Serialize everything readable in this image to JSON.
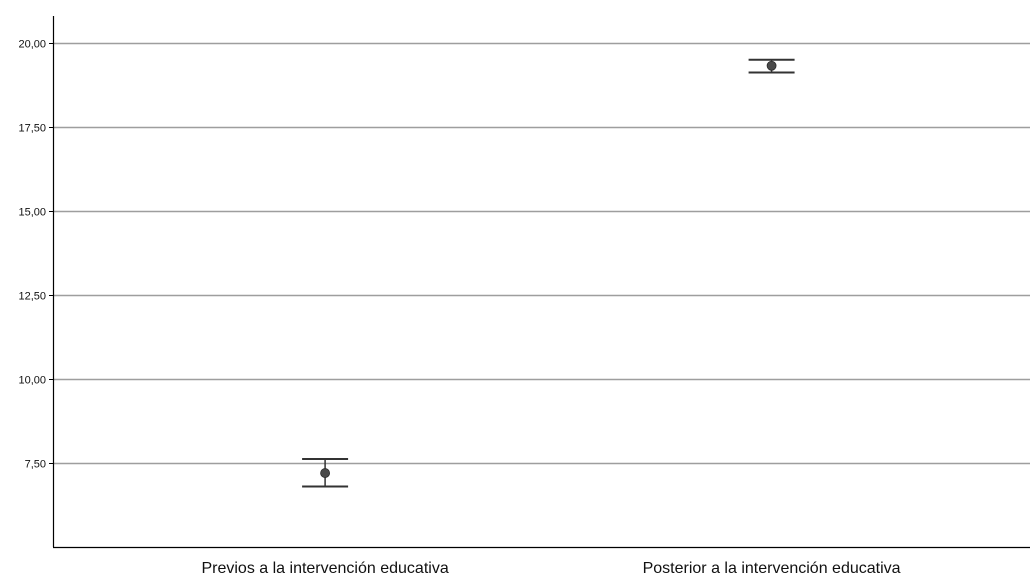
{
  "chart_data": {
    "type": "scatter",
    "title": "",
    "xlabel": "",
    "ylabel": "",
    "categories": [
      "Previos a la intervención educativa",
      "Posterior a la intervención educativa"
    ],
    "series": [
      {
        "points": [
          {
            "category": "Previos a la intervención educativa",
            "mean": 7.2,
            "ci_low": 6.8,
            "ci_high": 7.62
          },
          {
            "category": "Posterior a la intervención educativa",
            "mean": 19.32,
            "ci_low": 19.12,
            "ci_high": 19.5
          }
        ]
      }
    ],
    "ylim": [
      5.0,
      20.8
    ],
    "yticks": [
      7.5,
      10.0,
      12.5,
      15.0,
      17.5,
      20.0
    ],
    "ytick_labels": [
      "7,50",
      "10,00",
      "12,50",
      "15,00",
      "17,50",
      "20,00"
    ],
    "grid": true,
    "legend": "none",
    "colors": {
      "gridline": "#9e9e9e",
      "axis": "#000000",
      "marker": "#4a4a4a",
      "errorbar": "#333333",
      "text": "#111111"
    }
  }
}
